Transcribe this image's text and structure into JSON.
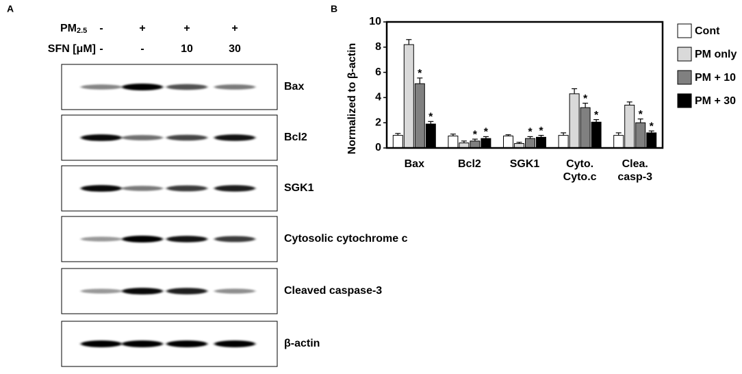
{
  "panel_a": {
    "label": "A",
    "treatments": [
      {
        "name": {
          "main": "PM",
          "sub": "2.5"
        },
        "values": [
          "-",
          "+",
          "+",
          "+"
        ]
      },
      {
        "name": {
          "main": "SFN [μM]"
        },
        "values": [
          "-",
          "-",
          "10",
          "30"
        ]
      }
    ],
    "blots": [
      "Bax",
      "Bcl2",
      "SGK1",
      "Cytosolic cytochrome c",
      "Cleaved caspase-3",
      "β-actin"
    ]
  },
  "panel_b": {
    "label": "B"
  },
  "chart_data": {
    "type": "bar",
    "y_label": "Normalized to β-actin",
    "categories": [
      "Bax",
      "Bcl2",
      "SGK1",
      "Cyto.\nCyto.c",
      "Clea.\ncasp-3"
    ],
    "ylim": [
      0,
      10
    ],
    "yticks": [
      0,
      2,
      4,
      6,
      8,
      10
    ],
    "series": [
      {
        "name": "Cont",
        "color": "#ffffff",
        "values": [
          1.0,
          0.95,
          0.95,
          1.0,
          1.0
        ],
        "errors": [
          0.15,
          0.15,
          0.1,
          0.2,
          0.2
        ],
        "markers": [
          null,
          null,
          null,
          null,
          null
        ]
      },
      {
        "name": "PM only",
        "color": "#d9d9d9",
        "values": [
          8.2,
          0.4,
          0.35,
          4.3,
          3.4
        ],
        "errors": [
          0.4,
          0.15,
          0.1,
          0.4,
          0.25
        ],
        "markers": [
          null,
          null,
          null,
          null,
          null
        ]
      },
      {
        "name": "PM + 10",
        "color": "#808080",
        "values": [
          5.1,
          0.55,
          0.75,
          3.2,
          2.0
        ],
        "errors": [
          0.45,
          0.15,
          0.15,
          0.35,
          0.3
        ],
        "markers": [
          "*",
          "*",
          "*",
          "*",
          "*"
        ]
      },
      {
        "name": "PM + 30",
        "color": "#000000",
        "values": [
          1.9,
          0.75,
          0.85,
          2.05,
          1.2
        ],
        "errors": [
          0.2,
          0.15,
          0.15,
          0.2,
          0.15
        ],
        "markers": [
          "*",
          "*",
          "*",
          "*",
          "*"
        ]
      }
    ]
  }
}
